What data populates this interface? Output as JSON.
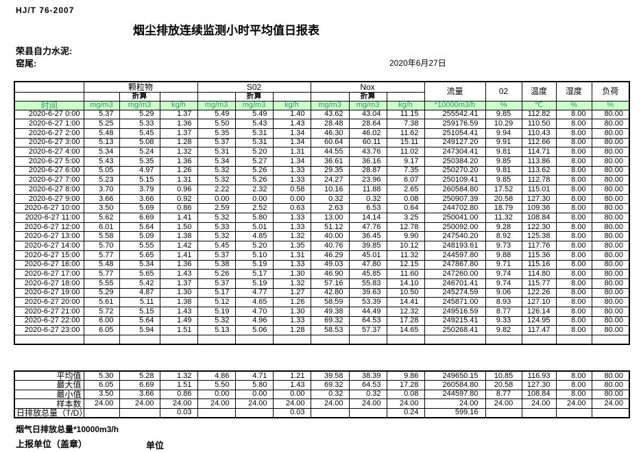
{
  "meta": {
    "standard": "HJ/T  76-2007",
    "title": "烟尘排放连续监测小时平均值日报表",
    "company": "荣县自力水泥:",
    "location": "窑尾:",
    "date": "2020年6月27日"
  },
  "table": {
    "time_label": "时间",
    "converted_label": "折算",
    "groups": [
      {
        "label": "颗粒物"
      },
      {
        "label": "S02"
      },
      {
        "label": "Nox"
      }
    ],
    "single_cols": [
      {
        "label": "流量"
      },
      {
        "label": "02"
      },
      {
        "label": "温度"
      },
      {
        "label": "湿度"
      },
      {
        "label": "负荷"
      }
    ],
    "units": [
      "mg/m3",
      "mg/m3",
      "kg/h",
      "mg/m3",
      "mg/m3",
      "kg/h",
      "mg/m3",
      "mg/m3",
      "kg/h",
      "*10000m3/h",
      "%",
      "℃",
      "%",
      "%"
    ],
    "rows": [
      {
        "time": "2020-6-27  0:00",
        "values": [
          "5.37",
          "5.29",
          "1.37",
          "5.49",
          "5.49",
          "1.40",
          "43.62",
          "43.04",
          "11.15",
          "255542.41",
          "9.85",
          "112.82",
          "8.00",
          "80.00"
        ]
      },
      {
        "time": "2020-6-27  1:00",
        "values": [
          "5.25",
          "5.33",
          "1.36",
          "5.50",
          "5.43",
          "1.43",
          "28.48",
          "28.64",
          "7.38",
          "259176.59",
          "10.29",
          "110.50",
          "8.00",
          "80.00"
        ]
      },
      {
        "time": "2020-6-27  2:00",
        "values": [
          "5.48",
          "5.45",
          "1.37",
          "5.35",
          "5.31",
          "1.34",
          "46.30",
          "46.02",
          "11.62",
          "251054.41",
          "9.94",
          "110.43",
          "8.00",
          "80.00"
        ]
      },
      {
        "time": "2020-6-27  3:00",
        "values": [
          "5.13",
          "5.08",
          "1.28",
          "5.37",
          "5.31",
          "1.34",
          "60.64",
          "60.11",
          "15.11",
          "249127.20",
          "9.91",
          "112.66",
          "8.00",
          "80.00"
        ]
      },
      {
        "time": "2020-6-27  4:00",
        "values": [
          "5.34",
          "5.24",
          "1.32",
          "5.31",
          "5.20",
          "1.31",
          "44.55",
          "43.76",
          "11.02",
          "247304.41",
          "9.81",
          "114.71",
          "8.00",
          "80.00"
        ]
      },
      {
        "time": "2020-6-27  5:00",
        "values": [
          "5.43",
          "5.35",
          "1.36",
          "5.34",
          "5.27",
          "1.34",
          "36.61",
          "36.16",
          "9.17",
          "250384.20",
          "9.85",
          "113.86",
          "8.00",
          "80.00"
        ]
      },
      {
        "time": "2020-6-27  6:00",
        "values": [
          "5.05",
          "4.97",
          "1.26",
          "5.32",
          "5.26",
          "1.33",
          "29.35",
          "28.87",
          "7.35",
          "250270.20",
          "9.81",
          "113.62",
          "8.00",
          "80.00"
        ]
      },
      {
        "time": "2020-6-27  7:00",
        "values": [
          "5.23",
          "5.15",
          "1.31",
          "5.32",
          "5.26",
          "1.33",
          "24.27",
          "23.96",
          "6.07",
          "250109.41",
          "9.85",
          "112.78",
          "8.00",
          "80.00"
        ]
      },
      {
        "time": "2020-6-27  8:00",
        "values": [
          "3.70",
          "3.79",
          "0.96",
          "2.22",
          "2.32",
          "0.58",
          "10.16",
          "11.88",
          "2.65",
          "260584.80",
          "17.52",
          "115.01",
          "8.00",
          "80.00"
        ]
      },
      {
        "time": "2020-6-27  9:00",
        "values": [
          "3.66",
          "3.66",
          "0.92",
          "0.00",
          "0.00",
          "0.00",
          "0.32",
          "0.32",
          "0.08",
          "250907.39",
          "20.58",
          "127.30",
          "8.00",
          "80.00"
        ]
      },
      {
        "time": "2020-6-27 10:00",
        "values": [
          "3.50",
          "5.69",
          "0.86",
          "2.59",
          "2.52",
          "0.63",
          "2.63",
          "6.53",
          "0.64",
          "244702.80",
          "18.79",
          "109.36",
          "8.00",
          "80.00"
        ]
      },
      {
        "time": "2020-6-27 11:00",
        "values": [
          "5.62",
          "6.69",
          "1.41",
          "5.32",
          "5.80",
          "1.33",
          "13.00",
          "14.14",
          "3.25",
          "250041.00",
          "11.32",
          "108.84",
          "8.00",
          "80.00"
        ]
      },
      {
        "time": "2020-6-27 12:00",
        "values": [
          "6.01",
          "5.64",
          "1.50",
          "5.33",
          "5.01",
          "1.33",
          "51.12",
          "47.76",
          "12.78",
          "250092.00",
          "9.28",
          "122.30",
          "8.00",
          "80.00"
        ]
      },
      {
        "time": "2020-6-27 13:00",
        "values": [
          "5.58",
          "5.09",
          "1.38",
          "5.32",
          "4.85",
          "1.32",
          "40.00",
          "36.45",
          "9.90",
          "247540.20",
          "8.92",
          "125.38",
          "8.00",
          "80.00"
        ]
      },
      {
        "time": "2020-6-27 14:00",
        "values": [
          "5.70",
          "5.55",
          "1.42",
          "5.45",
          "5.20",
          "1.35",
          "40.76",
          "39.85",
          "10.12",
          "248193.61",
          "9.73",
          "117.76",
          "8.00",
          "80.00"
        ]
      },
      {
        "time": "2020-6-27 15:00",
        "values": [
          "5.77",
          "5.65",
          "1.41",
          "5.37",
          "5.10",
          "1.31",
          "46.29",
          "45.01",
          "11.32",
          "244597.80",
          "9.88",
          "115.36",
          "8.00",
          "80.00"
        ]
      },
      {
        "time": "2020-6-27 16:00",
        "values": [
          "5.48",
          "5.34",
          "1.36",
          "5.38",
          "5.19",
          "1.33",
          "49.03",
          "47.80",
          "12.15",
          "247867.80",
          "9.71",
          "115.16",
          "8.00",
          "80.00"
        ]
      },
      {
        "time": "2020-6-27 17:00",
        "values": [
          "5.77",
          "5.65",
          "1.43",
          "5.26",
          "5.17",
          "1.30",
          "46.90",
          "45.85",
          "11.60",
          "247260.00",
          "9.74",
          "114.80",
          "8.00",
          "80.00"
        ]
      },
      {
        "time": "2020-6-27 18:00",
        "values": [
          "5.55",
          "5.42",
          "1.37",
          "5.37",
          "5.19",
          "1.32",
          "57.16",
          "55.83",
          "14.10",
          "246701.41",
          "9.74",
          "115.77",
          "8.00",
          "80.00"
        ]
      },
      {
        "time": "2020-6-27 19:00",
        "values": [
          "5.29",
          "4.87",
          "1.30",
          "5.17",
          "4.77",
          "1.27",
          "42.80",
          "39.63",
          "10.50",
          "245274.59",
          "9.06",
          "122.26",
          "8.00",
          "80.00"
        ]
      },
      {
        "time": "2020-6-27 20:00",
        "values": [
          "5.61",
          "5.11",
          "1.38",
          "5.12",
          "4.65",
          "1.26",
          "58.59",
          "53.39",
          "14.41",
          "245871.00",
          "8.93",
          "127.10",
          "8.00",
          "80.00"
        ]
      },
      {
        "time": "2020-6-27 21:00",
        "values": [
          "5.72",
          "5.15",
          "1.43",
          "5.19",
          "4.70",
          "1.30",
          "49.38",
          "44.49",
          "12.32",
          "249516.59",
          "8.77",
          "126.14",
          "8.00",
          "80.00"
        ]
      },
      {
        "time": "2020-6-27 22:00",
        "values": [
          "6.00",
          "5.64",
          "1.49",
          "5.32",
          "4.96",
          "1.33",
          "69.32",
          "64.53",
          "17.28",
          "249215.41",
          "9.33",
          "124.95",
          "8.00",
          "80.00"
        ]
      },
      {
        "time": "2020-6-27 23:00",
        "values": [
          "6.05",
          "5.94",
          "1.51",
          "5.13",
          "5.06",
          "1.28",
          "58.53",
          "57.37",
          "14.65",
          "250268.41",
          "9.82",
          "117.47",
          "8.00",
          "80.00"
        ]
      }
    ],
    "summary": [
      {
        "label": "平均值",
        "values": [
          "5.30",
          "5.28",
          "1.32",
          "4.86",
          "4.71",
          "1.21",
          "39.58",
          "38.39",
          "9.86",
          "249650.15",
          "10.85",
          "116.93",
          "8.00",
          "80.00"
        ]
      },
      {
        "label": "最大值",
        "values": [
          "6.05",
          "6.69",
          "1.51",
          "5.50",
          "5.80",
          "1.43",
          "69.32",
          "64.53",
          "17.28",
          "260584.80",
          "20.58",
          "127.30",
          "8.00",
          "80.00"
        ]
      },
      {
        "label": "最小值",
        "values": [
          "3.50",
          "3.66",
          "0.86",
          "0.00",
          "0.00",
          "0.00",
          "0.32",
          "0.32",
          "0.08",
          "244597.80",
          "8.77",
          "108.84",
          "8.00",
          "80.00"
        ]
      },
      {
        "label": "样本数",
        "values": [
          "24.00",
          "24.00",
          "24.00",
          "24.00",
          "24.00",
          "24.00",
          "24.00",
          "24.00",
          "24.00",
          "24.00",
          "24.00",
          "24.00",
          "24.00",
          "24.00"
        ]
      },
      {
        "label": "日排放总量（T/D）",
        "values": [
          "",
          "",
          "0.03",
          "",
          "",
          "0.03",
          "",
          "",
          "0.24",
          "599.16",
          "",
          "",
          "",
          ""
        ]
      }
    ]
  },
  "footer": {
    "total_flow_note": "烟气日排放总量*10000m3/h",
    "report_unit": "上报单位（盖章）",
    "unit_label": "单位"
  },
  "colors": {
    "header_bg": "#ccffcc",
    "header_text": "#339966",
    "border": "#000000"
  }
}
